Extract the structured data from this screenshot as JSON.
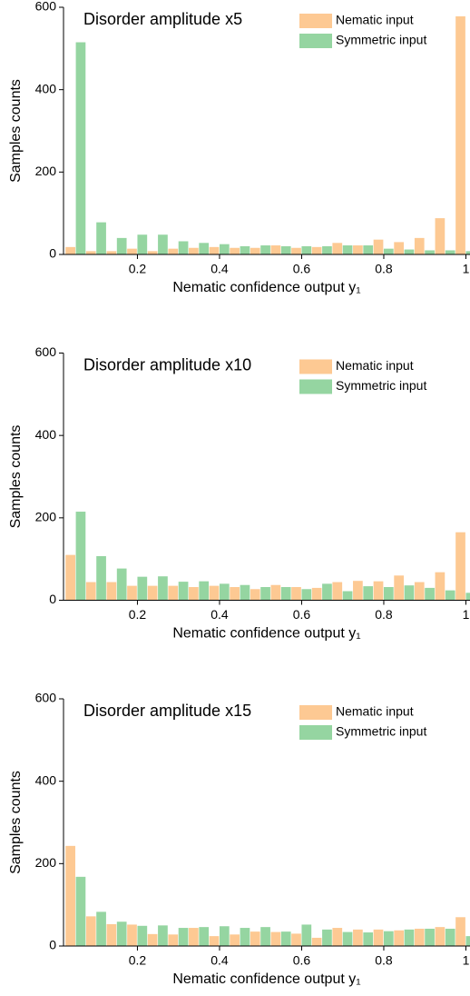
{
  "chart_data": [
    {
      "type": "bar",
      "title": "Disorder amplitude x5",
      "xlabel": "Nematic confidence output y₁",
      "ylabel": "Samples counts",
      "x": [
        0.05,
        0.1,
        0.15,
        0.2,
        0.25,
        0.3,
        0.35,
        0.4,
        0.45,
        0.5,
        0.55,
        0.6,
        0.65,
        0.7,
        0.75,
        0.8,
        0.85,
        0.9,
        0.95,
        1.0
      ],
      "series": [
        {
          "name": "Nematic input",
          "color": "#fdc993",
          "values": [
            18,
            8,
            8,
            14,
            8,
            14,
            16,
            18,
            16,
            16,
            22,
            16,
            18,
            28,
            22,
            36,
            30,
            40,
            88,
            578
          ]
        },
        {
          "name": "Symmetric input",
          "color": "#95d5a1",
          "values": [
            515,
            78,
            40,
            48,
            48,
            32,
            28,
            25,
            20,
            22,
            20,
            20,
            20,
            22,
            22,
            14,
            12,
            10,
            10,
            8
          ]
        }
      ],
      "xlim": [
        0.02,
        1.01
      ],
      "ylim": [
        0,
        600
      ],
      "xticks": [
        0.2,
        0.4,
        0.6,
        0.8,
        1
      ],
      "yticks": [
        0,
        200,
        400,
        600
      ],
      "legend": "upper right"
    },
    {
      "type": "bar",
      "title": "Disorder amplitude x10",
      "xlabel": "Nematic confidence output y₁",
      "ylabel": "Samples counts",
      "x": [
        0.05,
        0.1,
        0.15,
        0.2,
        0.25,
        0.3,
        0.35,
        0.4,
        0.45,
        0.5,
        0.55,
        0.6,
        0.65,
        0.7,
        0.75,
        0.8,
        0.85,
        0.9,
        0.95,
        1.0
      ],
      "series": [
        {
          "name": "Nematic input",
          "color": "#fdc993",
          "values": [
            110,
            44,
            44,
            35,
            35,
            35,
            32,
            35,
            32,
            27,
            37,
            32,
            30,
            44,
            47,
            46,
            60,
            44,
            68,
            165
          ]
        },
        {
          "name": "Symmetric input",
          "color": "#95d5a1",
          "values": [
            215,
            107,
            77,
            57,
            58,
            45,
            46,
            40,
            37,
            32,
            32,
            27,
            40,
            22,
            34,
            32,
            36,
            30,
            24,
            18
          ]
        }
      ],
      "xlim": [
        0.02,
        1.01
      ],
      "ylim": [
        0,
        600
      ],
      "xticks": [
        0.2,
        0.4,
        0.6,
        0.8,
        1
      ],
      "yticks": [
        0,
        200,
        400,
        600
      ],
      "legend": "upper right"
    },
    {
      "type": "bar",
      "title": "Disorder amplitude x15",
      "xlabel": "Nematic confidence output y₁",
      "ylabel": "Samples counts",
      "x": [
        0.05,
        0.1,
        0.15,
        0.2,
        0.25,
        0.3,
        0.35,
        0.4,
        0.45,
        0.5,
        0.55,
        0.6,
        0.65,
        0.7,
        0.75,
        0.8,
        0.85,
        0.9,
        0.95,
        1.0
      ],
      "series": [
        {
          "name": "Nematic input",
          "color": "#fdc993",
          "values": [
            243,
            72,
            53,
            52,
            29,
            28,
            44,
            24,
            28,
            35,
            34,
            30,
            20,
            44,
            40,
            40,
            38,
            42,
            46,
            70
          ]
        },
        {
          "name": "Symmetric input",
          "color": "#95d5a1",
          "values": [
            168,
            83,
            59,
            49,
            50,
            44,
            46,
            48,
            44,
            46,
            35,
            52,
            40,
            34,
            33,
            36,
            40,
            42,
            42,
            24
          ]
        }
      ],
      "xlim": [
        0.02,
        1.01
      ],
      "ylim": [
        0,
        600
      ],
      "xticks": [
        0.2,
        0.4,
        0.6,
        0.8,
        1
      ],
      "yticks": [
        0,
        200,
        400,
        600
      ],
      "legend": "upper right"
    }
  ]
}
